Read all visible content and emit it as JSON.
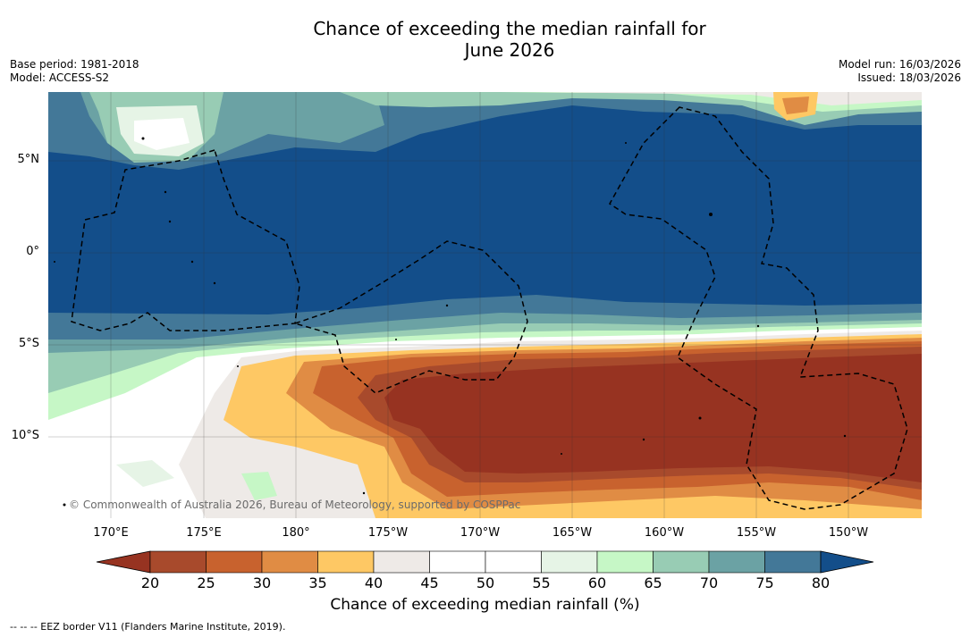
{
  "title_line1": "Chance of exceeding the median rainfall for",
  "title_line2": "June 2026",
  "base_period": "Base period: 1981-2018",
  "model": "Model: ACCESS-S2",
  "model_run": "Model run: 16/03/2026",
  "issued": "Issued: 18/03/2026",
  "lat_labels": [
    "5°N",
    "0°",
    "5°S",
    "10°S"
  ],
  "lon_labels": [
    "170°E",
    "175°E",
    "180°",
    "175°W",
    "170°W",
    "165°W",
    "160°W",
    "155°W",
    "150°W"
  ],
  "copyright": "© Commonwealth of Australia 2026, Bureau of Meteorology, supported by COSPPac",
  "colorbar": {
    "ticks": [
      "20",
      "25",
      "30",
      "35",
      "40",
      "45",
      "50",
      "55",
      "60",
      "65",
      "70",
      "75",
      "80"
    ],
    "colors": [
      "#a84a2c",
      "#c8622e",
      "#e08c44",
      "#fec864",
      "#eeeae7",
      "#ffffff",
      "#ffffff",
      "#e6f4e6",
      "#c6f7c6",
      "#98ccb4",
      "#6ba2a4",
      "#437898"
    ],
    "under_color": "#973321",
    "over_color": "#134e8a",
    "label": "Chance of exceeding median rainfall (%)"
  },
  "footnote": "-- -- -- EEZ border V11 (Flanders Marine Institute, 2019)."
}
